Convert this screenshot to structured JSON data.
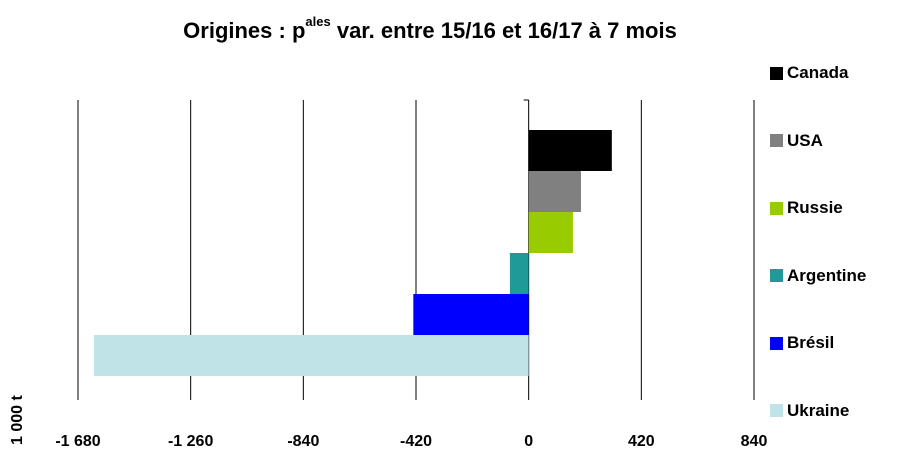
{
  "title": {
    "prefix": "Origines : p",
    "superscript": "ales",
    "suffix": " var. entre 15/16 et 16/17 à 7 mois"
  },
  "chart_data": {
    "type": "bar",
    "orientation": "horizontal",
    "title": "Origines : pales var. entre 15/16 et 16/17 à 7 mois",
    "xlabel": "1 000 t",
    "xlim": [
      -1680,
      840
    ],
    "xticks": [
      -1680,
      -1260,
      -840,
      -420,
      0,
      420,
      840
    ],
    "xtick_labels": [
      "-1 680",
      "-1 260",
      "-840",
      "-420",
      "0",
      "420",
      "840"
    ],
    "grid": "vertical",
    "categories": [
      "Canada",
      "USA",
      "Russie",
      "Argentine",
      "Brésil",
      "Ukraine"
    ],
    "values": [
      310,
      195,
      165,
      -70,
      -430,
      -1620
    ],
    "colors": [
      "#000000",
      "#808080",
      "#99cc00",
      "#1f9a98",
      "#0000ff",
      "#bfe3e6"
    ],
    "legend_position": "right"
  }
}
